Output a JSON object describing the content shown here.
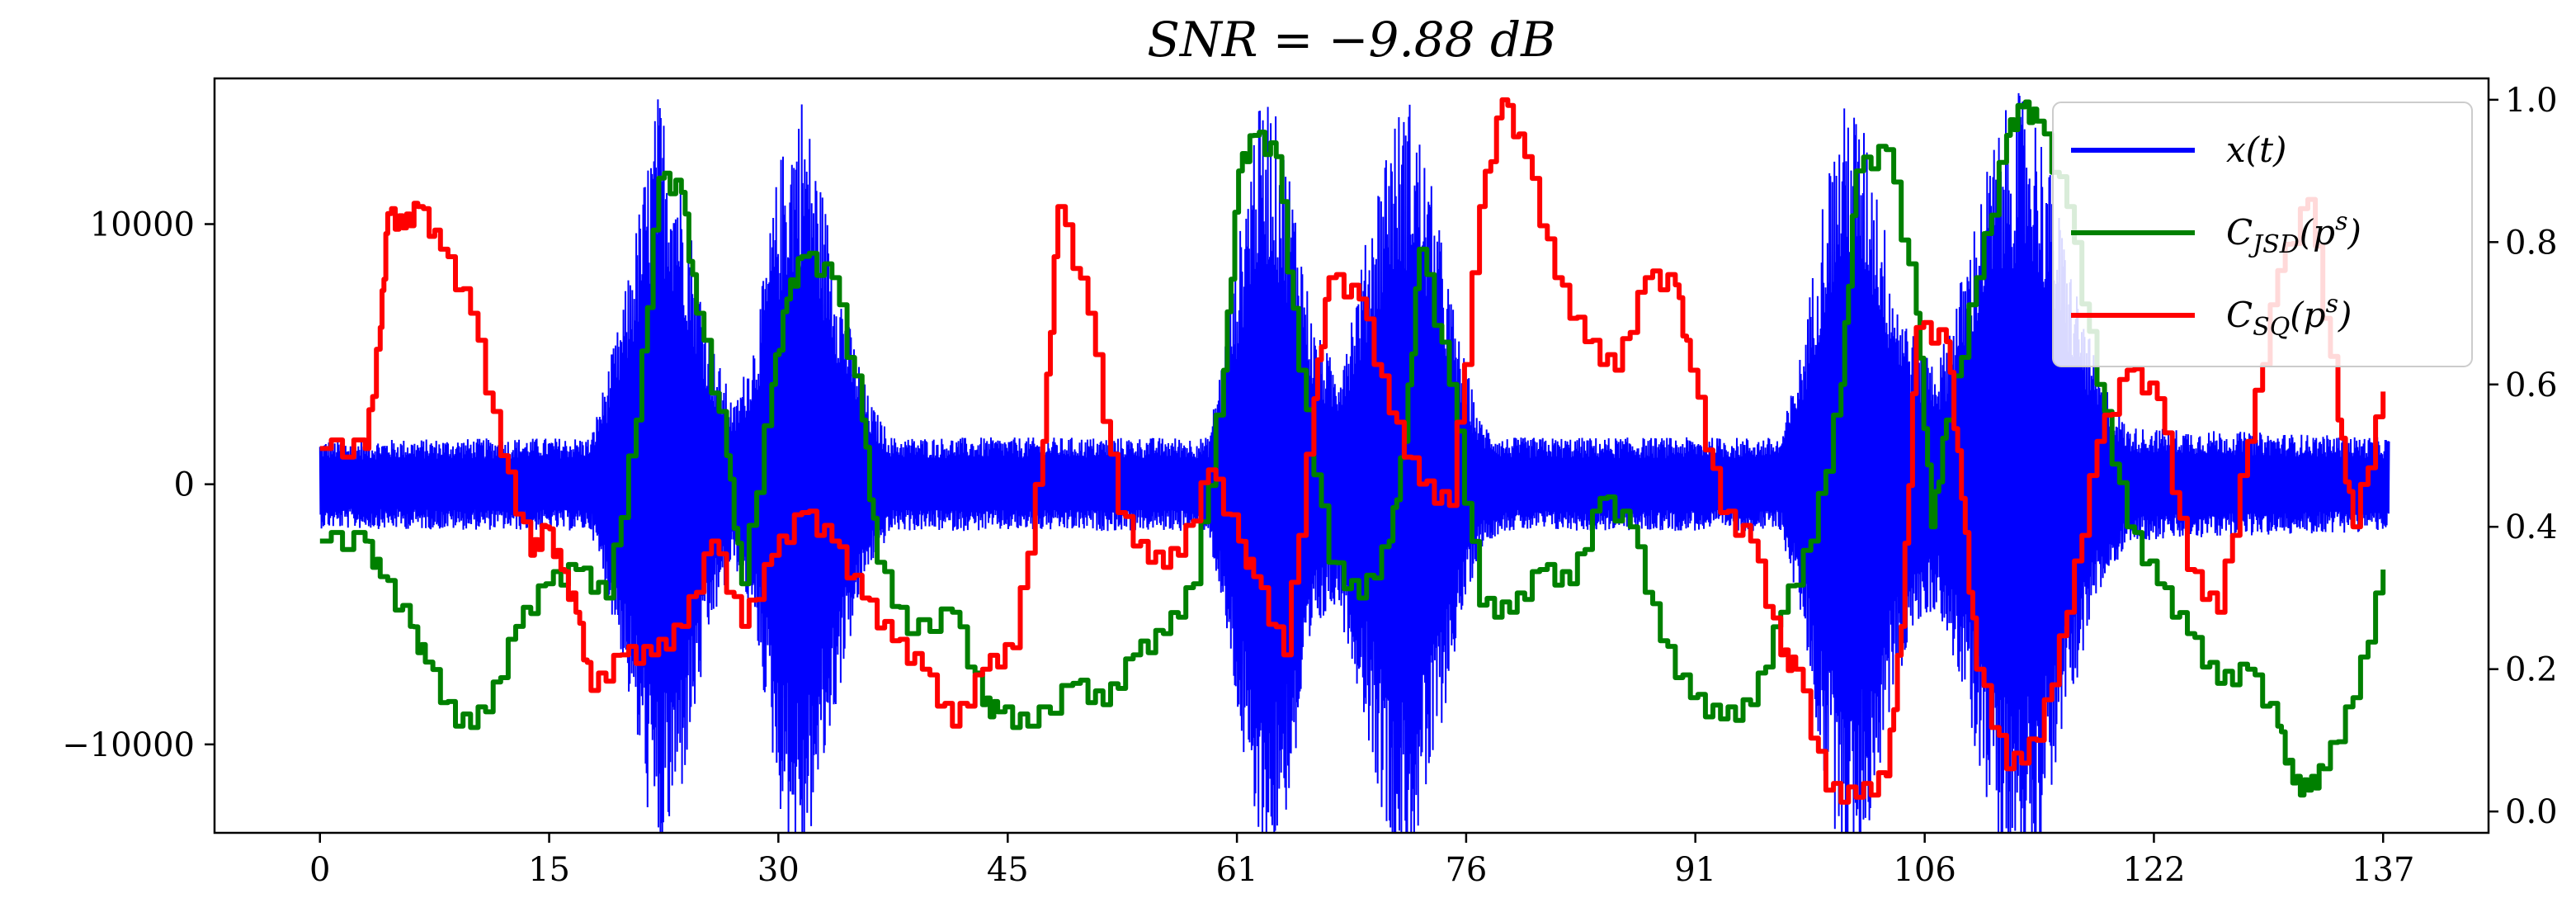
{
  "chart_data": {
    "type": "line",
    "title": "SNR = −9.88 dB",
    "xlabel": "",
    "ylabel": "",
    "y2label": "",
    "x_tick_labels": [
      "0",
      "15",
      "30",
      "45",
      "61",
      "76",
      "91",
      "106",
      "122",
      "137"
    ],
    "x_tick_values": [
      0,
      15.22,
      30.44,
      45.67,
      60.89,
      76.11,
      91.33,
      106.56,
      121.78,
      137.0
    ],
    "xlim": [
      -7,
      144
    ],
    "y_ticks": [
      -10000,
      0,
      10000
    ],
    "y_tick_labels": [
      "−10000",
      "0",
      "10000"
    ],
    "ylim": [
      -13400,
      15600
    ],
    "y2_ticks": [
      0.0,
      0.2,
      0.4,
      0.6,
      0.8,
      1.0
    ],
    "y2_tick_labels": [
      "0.0",
      "0.2",
      "0.4",
      "0.6",
      "0.8",
      "1.0"
    ],
    "y2lim": [
      -0.03,
      1.03
    ],
    "legend_position": "upper-right",
    "grid": false,
    "series": [
      {
        "name": "x(t)",
        "axis": "left",
        "color": "#0000ff",
        "baseline_amplitude": 1700,
        "envelope": [
          [
            0,
            1700
          ],
          [
            18,
            1800
          ],
          [
            20,
            6500
          ],
          [
            22.5,
            15200
          ],
          [
            24,
            12000
          ],
          [
            26,
            5500
          ],
          [
            27.5,
            3000
          ],
          [
            29,
            6000
          ],
          [
            30.5,
            12500
          ],
          [
            32,
            15200
          ],
          [
            33.5,
            11000
          ],
          [
            35,
            6500
          ],
          [
            36.5,
            3200
          ],
          [
            38,
            1800
          ],
          [
            59,
            1800
          ],
          [
            60.5,
            7000
          ],
          [
            62,
            14000
          ],
          [
            63,
            15200
          ],
          [
            64.5,
            12000
          ],
          [
            66,
            6000
          ],
          [
            67.5,
            4500
          ],
          [
            69,
            8000
          ],
          [
            71,
            14000
          ],
          [
            72.5,
            15000
          ],
          [
            74,
            11000
          ],
          [
            75.5,
            6000
          ],
          [
            77,
            2500
          ],
          [
            78.5,
            1800
          ],
          [
            97,
            1800
          ],
          [
            98.5,
            5500
          ],
          [
            100,
            12000
          ],
          [
            101.5,
            15200
          ],
          [
            103,
            13000
          ],
          [
            104.5,
            8000
          ],
          [
            106,
            5500
          ],
          [
            107.5,
            4800
          ],
          [
            109,
            8000
          ],
          [
            111,
            13000
          ],
          [
            112.5,
            15200
          ],
          [
            114,
            14500
          ],
          [
            116,
            9000
          ],
          [
            118,
            4500
          ],
          [
            120,
            2200
          ],
          [
            137,
            1800
          ]
        ]
      },
      {
        "name": "C_JSD(p^s)",
        "axis": "right",
        "color": "#008000",
        "x": [
          0,
          3,
          4,
          6,
          7,
          9,
          11,
          13,
          15,
          17,
          19,
          21,
          22.5,
          24,
          25,
          27,
          28,
          30,
          31,
          32,
          34,
          36,
          37,
          39,
          42,
          44,
          45,
          47,
          50,
          52,
          54,
          56,
          58,
          60,
          61,
          62,
          63.5,
          65,
          67,
          69,
          71,
          72,
          73,
          75,
          77,
          79,
          81,
          83,
          85,
          87,
          89,
          91,
          93,
          95,
          97,
          99,
          101,
          102,
          104,
          106,
          107,
          108,
          110,
          112,
          113,
          114,
          116,
          118,
          120,
          122,
          124,
          126,
          128,
          130,
          131,
          132,
          133,
          135,
          137
        ],
        "y": [
          0.38,
          0.38,
          0.33,
          0.26,
          0.21,
          0.12,
          0.14,
          0.26,
          0.32,
          0.34,
          0.3,
          0.55,
          0.89,
          0.87,
          0.7,
          0.5,
          0.32,
          0.6,
          0.72,
          0.78,
          0.75,
          0.55,
          0.35,
          0.25,
          0.28,
          0.15,
          0.14,
          0.12,
          0.18,
          0.15,
          0.22,
          0.25,
          0.32,
          0.62,
          0.9,
          0.95,
          0.92,
          0.62,
          0.35,
          0.3,
          0.38,
          0.52,
          0.79,
          0.6,
          0.29,
          0.28,
          0.34,
          0.32,
          0.44,
          0.4,
          0.24,
          0.16,
          0.13,
          0.15,
          0.28,
          0.38,
          0.6,
          0.9,
          0.93,
          0.7,
          0.4,
          0.55,
          0.75,
          0.95,
          0.99,
          0.97,
          0.85,
          0.6,
          0.4,
          0.32,
          0.25,
          0.18,
          0.2,
          0.12,
          0.04,
          0.03,
          0.06,
          0.16,
          0.34
        ]
      },
      {
        "name": "C_SQ(p^s)",
        "axis": "right",
        "color": "#ff0000",
        "x": [
          0,
          3,
          4,
          4.5,
          5.5,
          6.5,
          8,
          10,
          12,
          14,
          15,
          16,
          17,
          18,
          20,
          22,
          24,
          26,
          28,
          30,
          32,
          34,
          36,
          38,
          40,
          42,
          44,
          46,
          48,
          49,
          51,
          53,
          55,
          57,
          59,
          61,
          62,
          64,
          66,
          67,
          69,
          71,
          73,
          75,
          77,
          78.5,
          80,
          82,
          84,
          86,
          88,
          90,
          91,
          93,
          95,
          97,
          98,
          100,
          102,
          104,
          105,
          106,
          108,
          109,
          110,
          112,
          114,
          116,
          118,
          120,
          122,
          124,
          126,
          128,
          130,
          132,
          134,
          135,
          137
        ],
        "y": [
          0.51,
          0.51,
          0.68,
          0.84,
          0.82,
          0.85,
          0.79,
          0.7,
          0.5,
          0.36,
          0.4,
          0.34,
          0.28,
          0.17,
          0.22,
          0.22,
          0.26,
          0.38,
          0.26,
          0.36,
          0.42,
          0.38,
          0.3,
          0.24,
          0.2,
          0.12,
          0.2,
          0.23,
          0.52,
          0.85,
          0.7,
          0.42,
          0.35,
          0.36,
          0.48,
          0.38,
          0.33,
          0.22,
          0.58,
          0.75,
          0.72,
          0.56,
          0.46,
          0.43,
          0.85,
          1.0,
          0.92,
          0.75,
          0.66,
          0.62,
          0.75,
          0.74,
          0.62,
          0.42,
          0.38,
          0.22,
          0.2,
          0.03,
          0.02,
          0.05,
          0.26,
          0.68,
          0.66,
          0.44,
          0.2,
          0.06,
          0.1,
          0.28,
          0.52,
          0.62,
          0.58,
          0.34,
          0.28,
          0.52,
          0.76,
          0.86,
          0.55,
          0.4,
          0.59
        ]
      }
    ],
    "legend": [
      {
        "label_base": "x(t)",
        "label_sub": "",
        "label_sup": "",
        "color": "#0000ff"
      },
      {
        "label_base": "C",
        "label_sub": "JSD",
        "label_sup": "(p",
        "label_tail": ")",
        "sup_exp": "s",
        "color": "#008000"
      },
      {
        "label_base": "C",
        "label_sub": "SQ",
        "label_sup": "(p",
        "label_tail": ")",
        "sup_exp": "s",
        "color": "#ff0000"
      }
    ]
  }
}
